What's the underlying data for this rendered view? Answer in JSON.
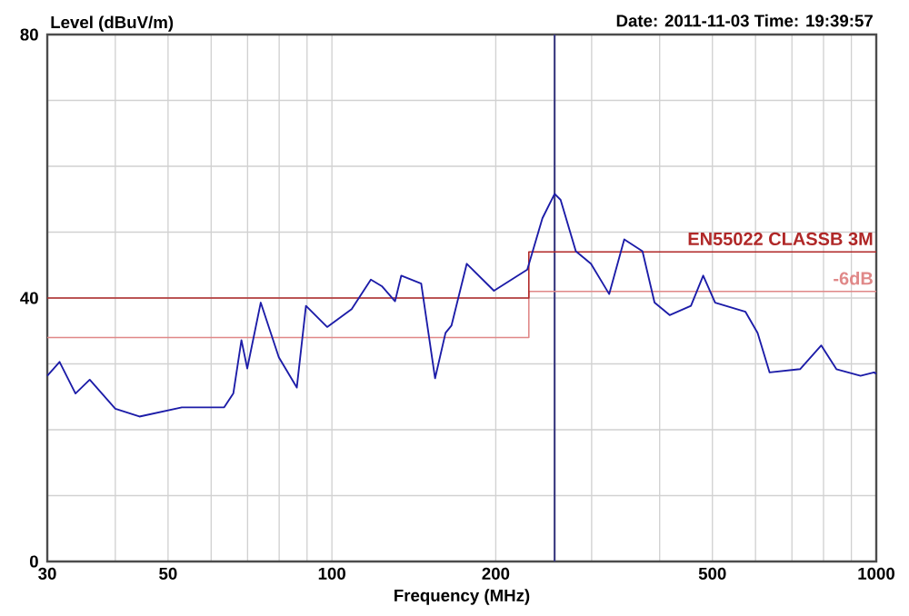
{
  "chart_data": {
    "type": "line",
    "xlabel": "Frequency (MHz)",
    "ylabel": "Level (dBuV/m)",
    "annotations": [
      "Date: 2011-11-03  Time: 19:39:57"
    ],
    "log": "x",
    "grid": true,
    "legend": false,
    "marker": "none",
    "line_style": "solid",
    "xlim": [
      30,
      1000
    ],
    "ylim": [
      0,
      80
    ],
    "xticks": [
      30,
      {
        "value": 40,
        "label": null
      },
      50,
      {
        "value": 60,
        "label": null
      },
      {
        "value": 70,
        "label": null
      },
      {
        "value": 80,
        "label": null
      },
      {
        "value": 90,
        "label": null
      },
      100,
      200,
      {
        "value": 300,
        "label": null
      },
      {
        "value": 400,
        "label": null
      },
      500,
      {
        "value": 600,
        "label": null
      },
      {
        "value": 700,
        "label": null
      },
      {
        "value": 800,
        "label": null
      },
      {
        "value": 900,
        "label": null
      },
      1000
    ],
    "yticks": [
      0,
      {
        "value": 10,
        "label": null
      },
      {
        "value": 20,
        "label": null
      },
      {
        "value": 30,
        "label": null
      },
      40,
      {
        "value": 50,
        "label": null
      },
      {
        "value": 60,
        "label": null
      },
      {
        "value": 70,
        "label": null
      },
      80
    ],
    "ref_lines": [
      {
        "axis": "x",
        "value": 256.5,
        "color": "#3a3a80"
      }
    ],
    "series": [
      {
        "color": "#1c1ca8",
        "x": [
          30,
          31.6,
          33.8,
          35.9,
          40,
          44.3,
          53,
          63.4,
          65.9,
          68.2,
          69.9,
          74,
          79.9,
          86.2,
          89.6,
          98,
          108.7,
          117.9,
          123.5,
          130.6,
          134.1,
          145.9,
          154.7,
          161.7,
          165.8,
          176.9,
          198.5,
          228.5,
          243.6,
          256.5,
          263.1,
          280.6,
          299.1,
          323.1,
          344.4,
          372,
          391.5,
          417.3,
          456.6,
          480.9,
          505.8,
          575.1,
          605.4,
          636.9,
          724.5,
          792.6,
          844.8,
          935.7,
          990.6,
          1000
        ],
        "values": [
          28.2,
          30.3,
          25.5,
          27.6,
          23.2,
          22,
          23.4,
          23.4,
          25.5,
          33.6,
          29.3,
          39.3,
          31,
          26.4,
          38.8,
          35.6,
          38.3,
          42.8,
          41.8,
          39.5,
          43.4,
          42.2,
          27.8,
          34.7,
          35.8,
          45.2,
          41.1,
          44.3,
          52.1,
          55.8,
          54.9,
          47.1,
          45.2,
          40.6,
          48.9,
          47.1,
          39.3,
          37.4,
          38.8,
          43.4,
          39.3,
          37.9,
          34.7,
          28.7,
          29.2,
          32.8,
          29.2,
          28.2,
          28.7,
          28.5
        ]
      },
      {
        "name": "EN55022 CLASSB 3M",
        "color": "#b02828",
        "x": [
          30,
          230,
          230,
          1000
        ],
        "values": [
          40,
          40,
          47,
          47
        ]
      },
      {
        "name": "-6dB",
        "color": "#e08888",
        "x": [
          30,
          230,
          230,
          1000
        ],
        "values": [
          34,
          34,
          41,
          41
        ]
      }
    ]
  }
}
